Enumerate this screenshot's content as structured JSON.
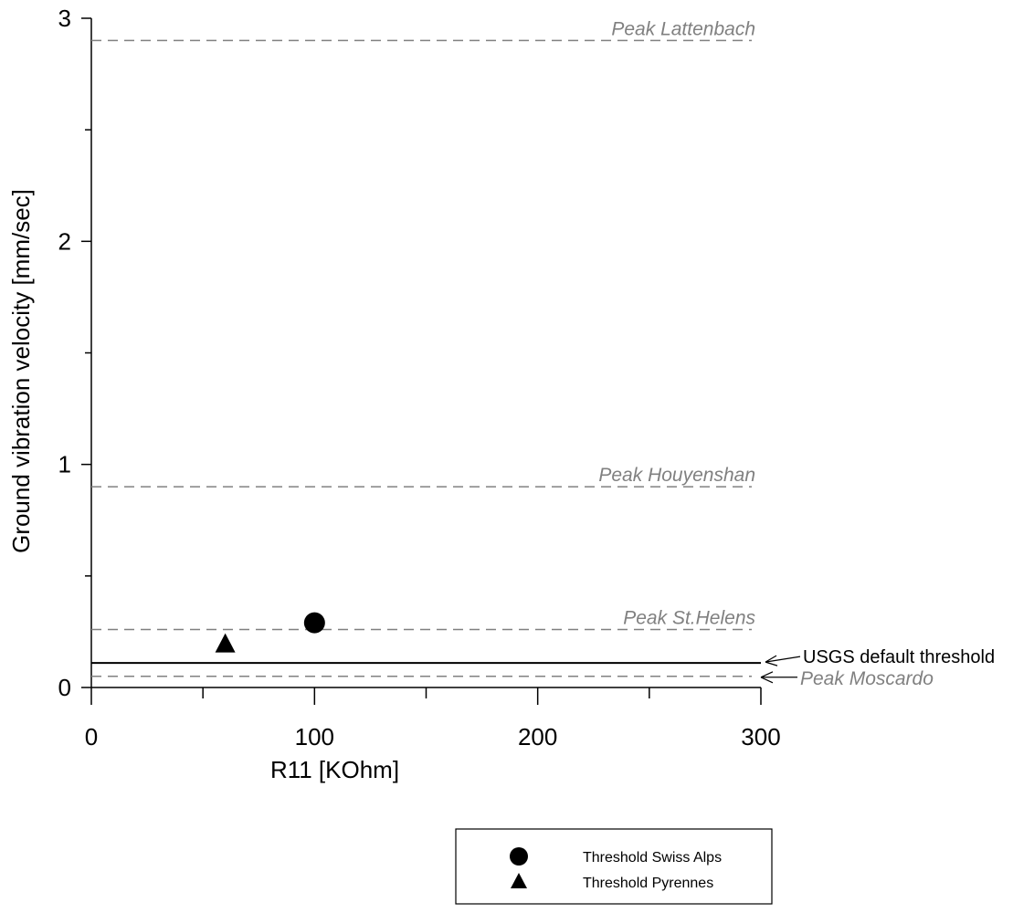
{
  "chart_data": {
    "type": "scatter",
    "title": "",
    "xlabel": "R11 [KOhm]",
    "ylabel": "Ground vibration velocity [mm/sec]",
    "xlim": [
      0,
      300
    ],
    "ylim": [
      0,
      3
    ],
    "x_ticks": [
      "0",
      "100",
      "200",
      "300"
    ],
    "y_ticks": [
      "0",
      "1",
      "2",
      "3"
    ],
    "grid": false,
    "legend_position": "bottom-right",
    "series": [
      {
        "name": "Threshold Swiss Alps",
        "marker": "circle",
        "color": "#000000",
        "points": [
          [
            100,
            0.29
          ]
        ]
      },
      {
        "name": "Threshold Pyrennes",
        "marker": "triangle",
        "color": "#000000",
        "points": [
          [
            60,
            0.19
          ]
        ]
      }
    ],
    "reference_lines": [
      {
        "label": "Peak Lattenbach",
        "y": 2.9,
        "style": "dashed",
        "color": "#808080"
      },
      {
        "label": "Peak Houyenshan",
        "y": 0.9,
        "style": "dashed",
        "color": "#808080"
      },
      {
        "label": "Peak St.Helens",
        "y": 0.26,
        "style": "dashed",
        "color": "#808080"
      },
      {
        "label": "USGS default threshold",
        "y": 0.11,
        "style": "solid",
        "color": "#000000"
      },
      {
        "label": "Peak Moscardo",
        "y": 0.05,
        "style": "dashed",
        "color": "#808080"
      }
    ]
  }
}
